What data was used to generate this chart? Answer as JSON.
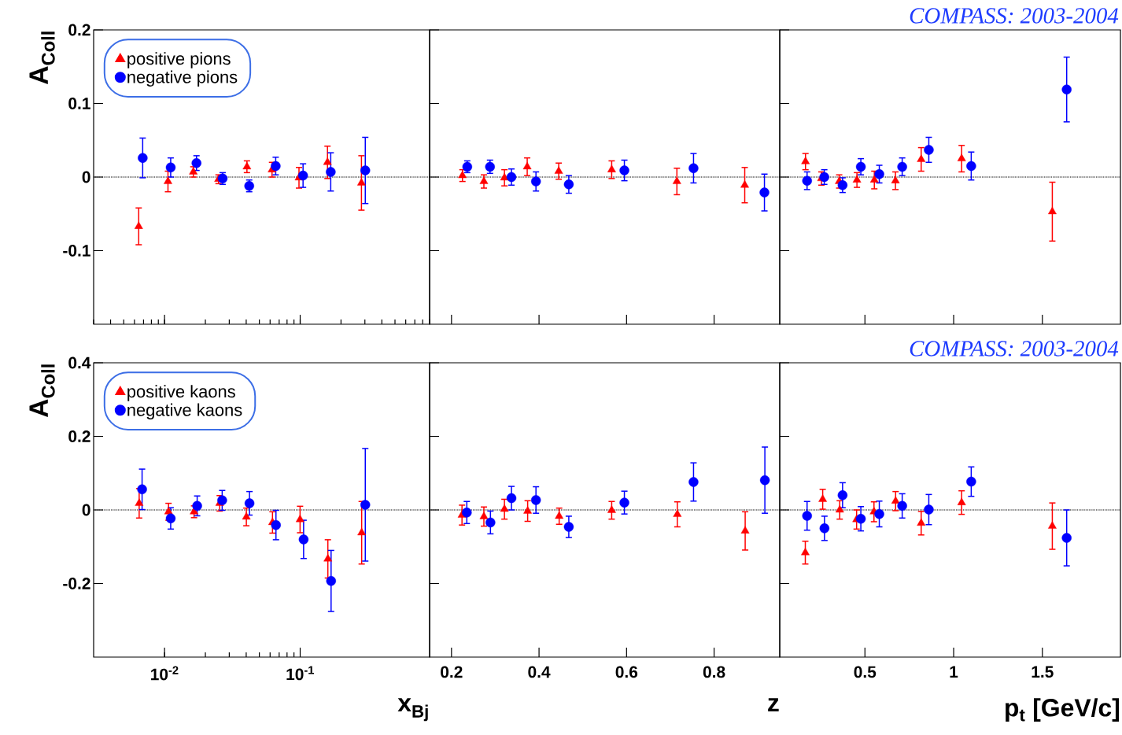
{
  "chart_data": [
    {
      "type": "scatter",
      "ylabel": "A$_{Coll}$",
      "log": "x",
      "xlim": [
        0.003,
        0.9
      ],
      "ylim": [
        -0.2,
        0.2
      ],
      "yticks": [
        -0.1,
        0,
        0.1,
        0.2
      ],
      "tick_labels": "y",
      "legend": "top left",
      "ref_lines": [
        {
          "axis": "y",
          "value": 0,
          "color": "#000000",
          "line_style": "dotted"
        }
      ],
      "series": [
        {
          "name": "positive pions",
          "color": "#ff0000",
          "marker": "triangle",
          "x": [
            0.00645,
            0.0106,
            0.0163,
            0.025,
            0.0405,
            0.062,
            0.098,
            0.159,
            0.283
          ],
          "values": [
            -0.067,
            -0.006,
            0.007,
            -0.003,
            0.014,
            0.01,
            -0.001,
            0.02,
            -0.008
          ],
          "errors": [
            0.025,
            0.014,
            0.007,
            0.006,
            0.008,
            0.01,
            0.014,
            0.022,
            0.037
          ]
        },
        {
          "name": "negative pions",
          "color": "#0000ff",
          "marker": "circle",
          "x": [
            0.0069,
            0.0111,
            0.0172,
            0.0268,
            0.0421,
            0.066,
            0.105,
            0.168,
            0.302
          ],
          "values": [
            0.026,
            0.013,
            0.019,
            -0.002,
            -0.012,
            0.015,
            0.002,
            0.007,
            0.009
          ],
          "errors": [
            0.027,
            0.013,
            0.01,
            0.008,
            0.008,
            0.012,
            0.016,
            0.026,
            0.045
          ]
        }
      ]
    },
    {
      "type": "scatter",
      "xlim": [
        0.15,
        0.95
      ],
      "ylim": [
        -0.2,
        0.2
      ],
      "xticks": [
        0.2,
        0.4,
        0.6,
        0.8
      ],
      "yticks": [
        -0.1,
        0,
        0.1,
        0.2
      ],
      "tick_labels": false,
      "ref_lines": [
        {
          "axis": "y",
          "value": 0,
          "color": "#000000",
          "line_style": "dotted"
        }
      ],
      "series": [
        {
          "color": "#ff0000",
          "marker": "triangle",
          "x": [
            0.225,
            0.274,
            0.321,
            0.373,
            0.445,
            0.566,
            0.715,
            0.87
          ],
          "values": [
            0.002,
            -0.006,
            -0.001,
            0.014,
            0.008,
            0.01,
            -0.006,
            -0.011
          ],
          "errors": [
            0.008,
            0.009,
            0.011,
            0.012,
            0.011,
            0.012,
            0.018,
            0.024
          ]
        },
        {
          "color": "#0000ff",
          "marker": "circle",
          "x": [
            0.236,
            0.288,
            0.337,
            0.393,
            0.468,
            0.595,
            0.753,
            0.915
          ],
          "values": [
            0.014,
            0.014,
            0.0,
            -0.006,
            -0.01,
            0.009,
            0.012,
            -0.021
          ],
          "errors": [
            0.008,
            0.009,
            0.011,
            0.013,
            0.012,
            0.014,
            0.02,
            0.025
          ]
        }
      ]
    },
    {
      "type": "scatter",
      "title": "COMPASS: 2003-2004",
      "xlim": [
        0.02,
        1.94
      ],
      "ylim": [
        -0.2,
        0.2
      ],
      "xticks": [
        0.5,
        1,
        1.5
      ],
      "yticks": [
        -0.1,
        0,
        0.1,
        0.2
      ],
      "tick_labels": false,
      "ref_lines": [
        {
          "axis": "y",
          "value": 0,
          "color": "#000000",
          "line_style": "dotted"
        }
      ],
      "series": [
        {
          "color": "#ff0000",
          "marker": "triangle",
          "x": [
            0.165,
            0.255,
            0.355,
            0.455,
            0.553,
            0.672,
            0.817,
            1.045,
            1.556
          ],
          "values": [
            0.021,
            -0.002,
            -0.006,
            -0.004,
            -0.004,
            -0.005,
            0.024,
            0.025,
            -0.047
          ],
          "errors": [
            0.011,
            0.009,
            0.009,
            0.01,
            0.012,
            0.012,
            0.016,
            0.018,
            0.04
          ]
        },
        {
          "color": "#0000ff",
          "marker": "circle",
          "x": [
            0.174,
            0.271,
            0.374,
            0.477,
            0.581,
            0.71,
            0.86,
            1.099,
            1.637
          ],
          "values": [
            -0.005,
            0.0,
            -0.011,
            0.014,
            0.004,
            0.014,
            0.037,
            0.015,
            0.119
          ],
          "errors": [
            0.012,
            0.01,
            0.01,
            0.011,
            0.012,
            0.012,
            0.017,
            0.019,
            0.044
          ]
        }
      ]
    },
    {
      "type": "scatter",
      "xlabel": "x$_{Bj}$",
      "ylabel": "A$_{Coll}$",
      "log": "x",
      "xlim": [
        0.003,
        0.9
      ],
      "ylim": [
        -0.4,
        0.4
      ],
      "xticks": [
        {
          "value": 0.01,
          "label": "10$^{-2}$"
        },
        {
          "value": 0.1,
          "label": "10$^{-1}$"
        }
      ],
      "yticks": [
        -0.2,
        0,
        0.2,
        0.4
      ],
      "legend": "top left",
      "ref_lines": [
        {
          "axis": "y",
          "value": 0,
          "color": "#000000",
          "line_style": "dotted"
        }
      ],
      "series": [
        {
          "name": "positive kaons",
          "color": "#ff0000",
          "marker": "triangle",
          "x": [
            0.0065,
            0.0107,
            0.0165,
            0.0255,
            0.0401,
            0.0625,
            0.0998,
            0.16,
            0.284
          ],
          "values": [
            0.018,
            -0.005,
            -0.005,
            0.018,
            -0.019,
            -0.034,
            -0.026,
            -0.133,
            -0.062
          ],
          "errors": [
            0.04,
            0.023,
            0.016,
            0.021,
            0.024,
            0.029,
            0.036,
            0.052,
            0.085
          ]
        },
        {
          "name": "negative kaons",
          "color": "#0000ff",
          "marker": "circle",
          "x": [
            0.00683,
            0.0111,
            0.0174,
            0.0266,
            0.0423,
            0.0663,
            0.106,
            0.169,
            0.302
          ],
          "values": [
            0.056,
            -0.023,
            0.011,
            0.026,
            0.018,
            -0.041,
            -0.08,
            -0.193,
            0.014
          ],
          "errors": [
            0.055,
            0.029,
            0.027,
            0.027,
            0.032,
            0.04,
            0.052,
            0.083,
            0.153
          ]
        }
      ]
    },
    {
      "type": "scatter",
      "xlabel": "z",
      "xlim": [
        0.15,
        0.95
      ],
      "ylim": [
        -0.4,
        0.4
      ],
      "xticks": [
        0.2,
        0.4,
        0.6,
        0.8
      ],
      "yticks": [
        -0.2,
        0,
        0.2,
        0.4
      ],
      "tick_labels": "x",
      "ref_lines": [
        {
          "axis": "y",
          "value": 0,
          "color": "#000000",
          "line_style": "dotted"
        }
      ],
      "series": [
        {
          "color": "#ff0000",
          "marker": "triangle",
          "x": [
            0.224,
            0.274,
            0.321,
            0.374,
            0.446,
            0.566,
            0.716,
            0.871
          ],
          "values": [
            -0.014,
            -0.018,
            0.002,
            -0.003,
            -0.017,
            -0.001,
            -0.012,
            -0.057
          ],
          "errors": [
            0.027,
            0.026,
            0.027,
            0.028,
            0.022,
            0.024,
            0.034,
            0.052
          ]
        },
        {
          "color": "#0000ff",
          "marker": "circle",
          "x": [
            0.235,
            0.289,
            0.337,
            0.393,
            0.468,
            0.595,
            0.753,
            0.916
          ],
          "values": [
            -0.007,
            -0.034,
            0.032,
            0.027,
            -0.046,
            0.02,
            0.076,
            0.081
          ],
          "errors": [
            0.03,
            0.031,
            0.032,
            0.036,
            0.029,
            0.031,
            0.052,
            0.09
          ]
        }
      ]
    },
    {
      "type": "scatter",
      "title": "COMPASS: 2003-2004",
      "xlabel": "p$_{t}$ [GeV/c]",
      "xlim": [
        0.02,
        1.94
      ],
      "ylim": [
        -0.4,
        0.4
      ],
      "xticks": [
        0.5,
        1,
        1.5
      ],
      "yticks": [
        -0.2,
        0,
        0.2,
        0.4
      ],
      "tick_labels": "x",
      "ref_lines": [
        {
          "axis": "y",
          "value": 0,
          "color": "#000000",
          "line_style": "dotted"
        }
      ],
      "series": [
        {
          "color": "#ff0000",
          "marker": "triangle",
          "x": [
            0.164,
            0.262,
            0.358,
            0.453,
            0.551,
            0.673,
            0.817,
            1.045,
            1.556
          ],
          "values": [
            -0.116,
            0.029,
            0.0,
            -0.026,
            -0.005,
            0.024,
            -0.036,
            0.02,
            -0.044
          ],
          "errors": [
            0.031,
            0.027,
            0.025,
            0.026,
            0.027,
            0.026,
            0.032,
            0.032,
            0.063
          ]
        },
        {
          "color": "#0000ff",
          "marker": "circle",
          "x": [
            0.174,
            0.272,
            0.374,
            0.477,
            0.581,
            0.71,
            0.86,
            1.099,
            1.637
          ],
          "values": [
            -0.016,
            -0.05,
            0.04,
            -0.024,
            -0.011,
            0.011,
            0.001,
            0.077,
            -0.076
          ],
          "errors": [
            0.039,
            0.033,
            0.034,
            0.033,
            0.035,
            0.033,
            0.041,
            0.04,
            0.076
          ]
        }
      ]
    }
  ]
}
